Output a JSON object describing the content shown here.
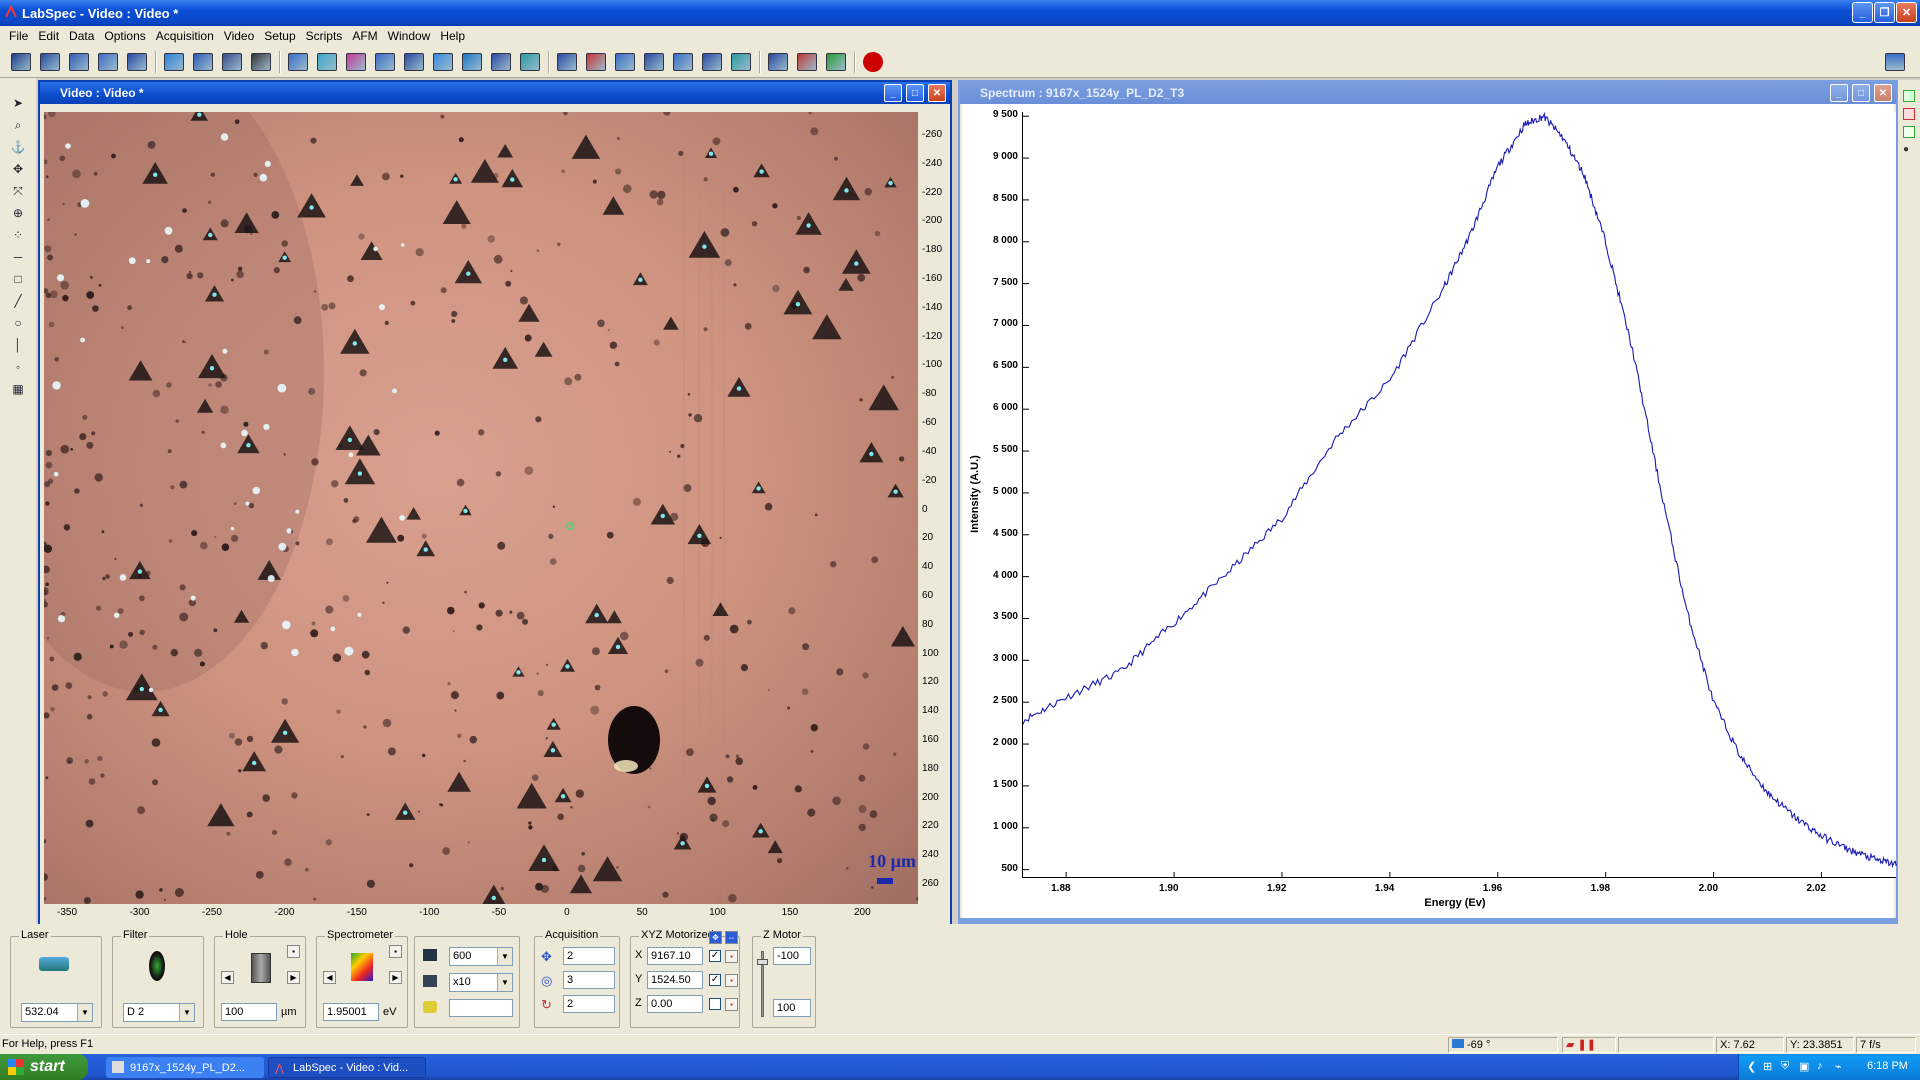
{
  "app": {
    "title": "LabSpec - Video : Video *"
  },
  "menu": [
    "File",
    "Edit",
    "Data",
    "Options",
    "Acquisition",
    "Video",
    "Setup",
    "Scripts",
    "AFM",
    "Window",
    "Help"
  ],
  "toolbar": {
    "icons": [
      "video-capture-icon",
      "video-settings-icon",
      "video-focus-icon",
      "image-icon",
      "info-icon",
      "open-file-icon",
      "save-icon",
      "print-icon",
      "help-icon",
      "map-icon",
      "grid-icon",
      "laser-icon",
      "table-icon",
      "grid-select-icon",
      "image-mapping-icon",
      "rotate-icon",
      "zoom-fit-icon",
      "baseline-icon",
      "spectra-icon",
      "peaks-icon",
      "fit-icon",
      "gauss-icon",
      "scatter-icon",
      "bars-icon",
      "export-icon",
      "multi-window-icon",
      "palette-icon",
      "smooth-icon",
      "stop-icon"
    ],
    "right_icon": "settings-icon"
  },
  "video_window": {
    "title": "Video : Video *",
    "scalebar_label": "10 µm",
    "x_ticks": [
      "-350",
      "-300",
      "-250",
      "-200",
      "-150",
      "-100",
      "-50",
      "0",
      "50",
      "100",
      "150",
      "200"
    ],
    "y_ticks": [
      "-260",
      "-240",
      "-220",
      "-200",
      "-180",
      "-160",
      "-140",
      "-120",
      "-100",
      "-80",
      "-60",
      "-40",
      "-20",
      "0",
      "20",
      "40",
      "60",
      "80",
      "100",
      "120",
      "140",
      "160",
      "180",
      "200",
      "220",
      "240",
      "260"
    ]
  },
  "spectrum_window": {
    "title": "Spectrum : 9167x_1524y_PL_D2_T3"
  },
  "chart_data": {
    "type": "line",
    "title": "",
    "xlabel": "Energy (Ev)",
    "ylabel": "Intensity (A.U.)",
    "xlim": [
      1.872,
      2.034
    ],
    "ylim": [
      400,
      9550
    ],
    "x_ticks": [
      "1.88",
      "1.90",
      "1.92",
      "1.94",
      "1.96",
      "1.98",
      "2.00",
      "2.02"
    ],
    "y_ticks": [
      "500",
      "1 000",
      "1 500",
      "2 000",
      "2 500",
      "3 000",
      "3 500",
      "4 000",
      "4 500",
      "5 000",
      "5 500",
      "6 000",
      "6 500",
      "7 000",
      "7 500",
      "8 000",
      "8 500",
      "9 000",
      "9 500"
    ],
    "series": [
      {
        "x": [
          1.872,
          1.88,
          1.89,
          1.9,
          1.91,
          1.92,
          1.93,
          1.94,
          1.95,
          1.955,
          1.96,
          1.965,
          1.9685,
          1.972,
          1.976,
          1.98,
          1.985,
          1.99,
          1.995,
          2.0,
          2.005,
          2.01,
          2.015,
          2.02,
          2.025,
          2.03,
          2.034
        ],
        "y": [
          2280,
          2560,
          2860,
          3450,
          4050,
          4700,
          5650,
          6350,
          7450,
          8100,
          8900,
          9400,
          9500,
          9250,
          8800,
          8000,
          6700,
          5100,
          3600,
          2500,
          1850,
          1420,
          1130,
          900,
          740,
          620,
          560
        ]
      }
    ],
    "grid": false,
    "legend": "none"
  },
  "bottom_panel": {
    "laser": {
      "label": "Laser",
      "value": "532.04"
    },
    "filter": {
      "label": "Filter",
      "value": "D 2"
    },
    "hole": {
      "label": "Hole",
      "value": "100",
      "unit": "µm"
    },
    "spectrometer": {
      "label": "Spectrometer",
      "value": "1.95001",
      "unit": "eV"
    },
    "grating": {
      "value": "600",
      "objective": "x10",
      "extra": ""
    },
    "acquisition": {
      "label": "Acquisition",
      "time": "2",
      "accum": "3",
      "cycles": "2"
    },
    "xyz": {
      "label": "XYZ Motorized",
      "x_label": "X",
      "x": "9167.10",
      "y_label": "Y",
      "y": "1524.50",
      "z_label": "Z",
      "z": "0.00"
    },
    "zmotor": {
      "label": "Z Motor",
      "top": "-100",
      "bottom": "100"
    }
  },
  "status": {
    "help": "For Help, press F1",
    "temp": "-69 °",
    "x": "X: 7.62",
    "y": "Y: 23.3851",
    "fps": "7 f/s"
  },
  "taskbar": {
    "start": "start",
    "items": [
      "9167x_1524y_PL_D2...",
      "LabSpec - Video : Vid..."
    ],
    "clock": "6:18 PM"
  }
}
